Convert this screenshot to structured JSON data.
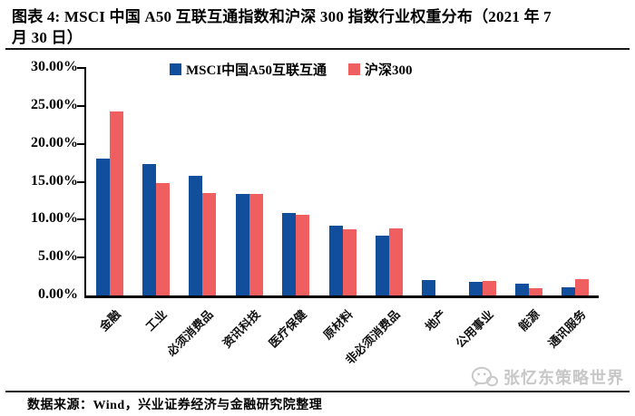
{
  "figure": {
    "title_line1": "图表 4:  MSCI 中国 A50 互联互通指数和沪深 300 指数行业权重分布（2021 年 7",
    "title_line2": "月 30 日）",
    "source_note": "数据来源：Wind，兴业证券经济与金融研究院整理",
    "watermark": "张忆东策略世界"
  },
  "chart_data": {
    "type": "bar",
    "title": "MSCI中国A50互联互通指数和沪深300指数行业权重分布（2021年7月30日）",
    "categories": [
      "金融",
      "工业",
      "必须消费品",
      "资讯科技",
      "医疗保健",
      "原材料",
      "非必须消费品",
      "地产",
      "公用事业",
      "能源",
      "通讯服务"
    ],
    "series": [
      {
        "name": "MSCI中国A50互联互通",
        "color": "#114E9C",
        "values": [
          18.1,
          17.3,
          15.8,
          13.4,
          10.9,
          9.2,
          7.9,
          2.0,
          1.8,
          1.6,
          1.1
        ]
      },
      {
        "name": "沪深300",
        "color": "#EF5F60",
        "values": [
          24.3,
          14.8,
          13.5,
          13.4,
          10.6,
          8.7,
          8.9,
          0.0,
          1.9,
          1.0,
          2.1
        ]
      }
    ],
    "unit": "percent",
    "ylim": [
      0,
      30
    ],
    "ytick_step": 5,
    "ytick_labels_top_to_bottom": [
      "30.00%",
      "25.00%",
      "20.00%",
      "15.00%",
      "10.00%",
      "5.00%",
      "0.00%"
    ],
    "grid": false,
    "legend_position": "top",
    "axis_color": "#000000"
  }
}
